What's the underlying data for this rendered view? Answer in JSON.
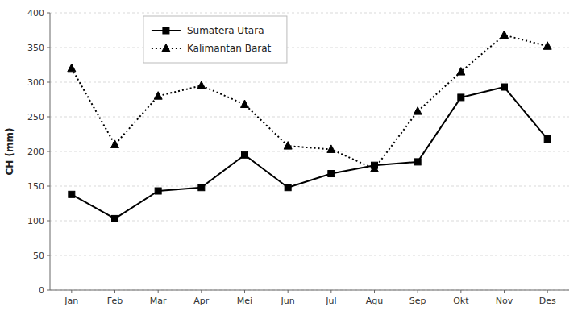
{
  "chart_data": {
    "type": "line",
    "ylabel": "CH (mm)",
    "categories": [
      "Jan",
      "Feb",
      "Mar",
      "Apr",
      "Mei",
      "Jun",
      "Jul",
      "Agu",
      "Sep",
      "Okt",
      "Nov",
      "Des"
    ],
    "series": [
      {
        "name": "Sumatera Utara",
        "color": "#000000",
        "marker": "square",
        "line_style": "solid",
        "values": [
          138,
          103,
          143,
          148,
          195,
          148,
          168,
          180,
          185,
          278,
          293,
          218
        ]
      },
      {
        "name": "Kalimantan Barat",
        "color": "#000000",
        "marker": "triangle",
        "line_style": "dotted",
        "values": [
          320,
          210,
          280,
          295,
          268,
          208,
          203,
          175,
          258,
          315,
          368,
          352
        ]
      }
    ],
    "ylim": [
      0,
      400
    ],
    "yticks": [
      0,
      50,
      100,
      150,
      200,
      250,
      300,
      350,
      400
    ],
    "grid": true,
    "legend": "upper left"
  }
}
